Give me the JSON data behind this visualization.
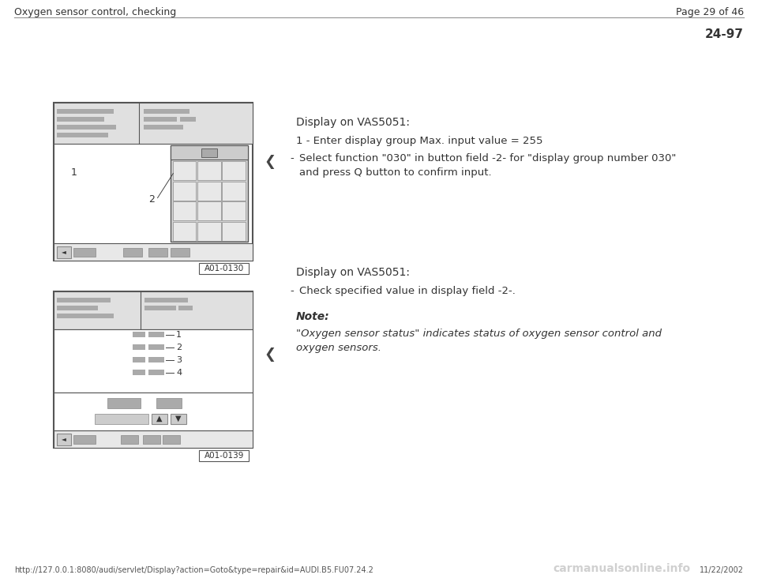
{
  "page_bg": "#ffffff",
  "header_left": "Oxygen sensor control, checking",
  "header_right": "Page 29 of 46",
  "section_num": "24-97",
  "footer_url": "http://127.0.0.1:8080/audi/servlet/Display?action=Goto&type=repair&id=AUDI.B5.FU07.24.2",
  "footer_right": "11/22/2002",
  "footer_logo": "carmanualsonline.info",
  "diagram1_label": "A01-0130",
  "diagram2_label": "A01-0139",
  "section1_title": "Display on VAS5051:",
  "section1_item1": "1 - Enter display group Max. input value = 255",
  "section1_bullet_dash": "-",
  "section1_bullet": "Select function \"030\" in button field -2- for \"display group number 030\"\nand press Q button to confirm input.",
  "section2_title": "Display on VAS5051:",
  "section2_bullet_dash": "-",
  "section2_bullet": "Check specified value in display field -2-.",
  "note_label": "Note:",
  "note_text": "\"Oxygen sensor status\" indicates status of oxygen sensor control and\noxygen sensors.",
  "gray_light": "#cccccc",
  "gray_mid": "#aaaaaa",
  "gray_panel": "#d4d4d4",
  "gray_box": "#e8e8e8",
  "gray_header": "#e0e0e0",
  "ec_main": "#555555",
  "ec_light": "#888888"
}
